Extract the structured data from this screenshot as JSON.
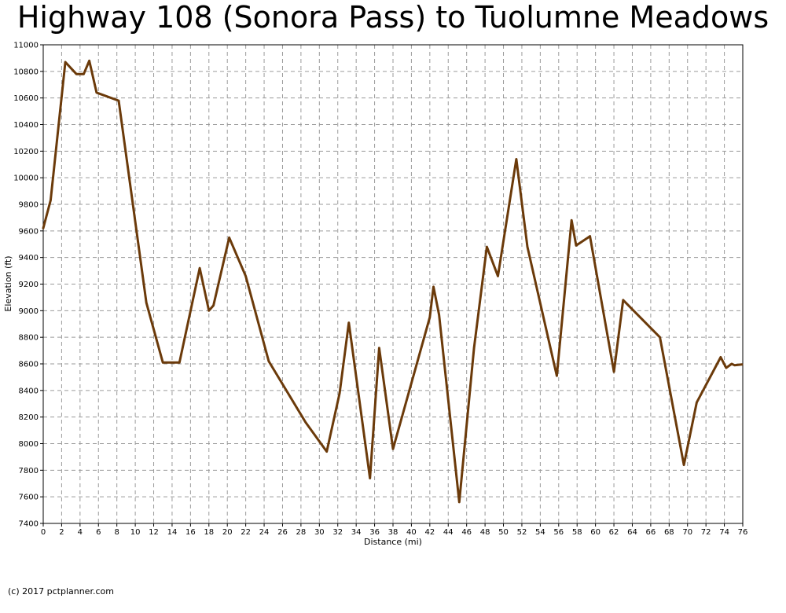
{
  "chart_data": {
    "type": "line",
    "title": "Highway 108 (Sonora Pass) to Tuolumne Meadows",
    "xlabel": "Distance (mi)",
    "ylabel": "Elevation (ft)",
    "xlim": [
      0,
      76
    ],
    "ylim": [
      7400,
      11000
    ],
    "x_ticks": [
      0,
      2,
      4,
      6,
      8,
      10,
      12,
      14,
      16,
      18,
      20,
      22,
      24,
      26,
      28,
      30,
      32,
      34,
      36,
      38,
      40,
      42,
      44,
      46,
      48,
      50,
      52,
      54,
      56,
      58,
      60,
      62,
      64,
      66,
      68,
      70,
      72,
      74,
      76
    ],
    "y_ticks": [
      7400,
      7600,
      7800,
      8000,
      8200,
      8400,
      8600,
      8800,
      9000,
      9200,
      9400,
      9600,
      9800,
      10000,
      10200,
      10400,
      10600,
      10800,
      11000
    ],
    "grid": true,
    "line_color": "#6b3a0a",
    "series": [
      {
        "points": [
          [
            0,
            9620
          ],
          [
            0.8,
            9830
          ],
          [
            2.4,
            10870
          ],
          [
            3.6,
            10780
          ],
          [
            4.4,
            10780
          ],
          [
            5.0,
            10880
          ],
          [
            5.8,
            10640
          ],
          [
            8.2,
            10580
          ],
          [
            11.2,
            9060
          ],
          [
            13.0,
            8610
          ],
          [
            14.8,
            8610
          ],
          [
            17.0,
            9320
          ],
          [
            18.0,
            9000
          ],
          [
            18.5,
            9040
          ],
          [
            20.2,
            9550
          ],
          [
            22.0,
            9260
          ],
          [
            24.5,
            8620
          ],
          [
            28.5,
            8160
          ],
          [
            30.8,
            7940
          ],
          [
            32.2,
            8380
          ],
          [
            33.2,
            8910
          ],
          [
            35.5,
            7740
          ],
          [
            36.5,
            8720
          ],
          [
            38.0,
            7960
          ],
          [
            42.0,
            8950
          ],
          [
            42.4,
            9180
          ],
          [
            43.0,
            8970
          ],
          [
            45.2,
            7560
          ],
          [
            46.8,
            8720
          ],
          [
            48.2,
            9480
          ],
          [
            49.4,
            9260
          ],
          [
            51.4,
            10140
          ],
          [
            52.6,
            9480
          ],
          [
            55.8,
            8510
          ],
          [
            57.4,
            9680
          ],
          [
            57.9,
            9490
          ],
          [
            59.4,
            9560
          ],
          [
            62.0,
            8540
          ],
          [
            63.0,
            9080
          ],
          [
            67.0,
            8800
          ],
          [
            69.6,
            7840
          ],
          [
            71.0,
            8310
          ],
          [
            73.6,
            8650
          ],
          [
            74.2,
            8570
          ],
          [
            74.8,
            8600
          ],
          [
            75.1,
            8590
          ],
          [
            75.9,
            8595
          ]
        ]
      }
    ]
  },
  "footer": {
    "text": "(c) 2017 pctplanner.com"
  }
}
